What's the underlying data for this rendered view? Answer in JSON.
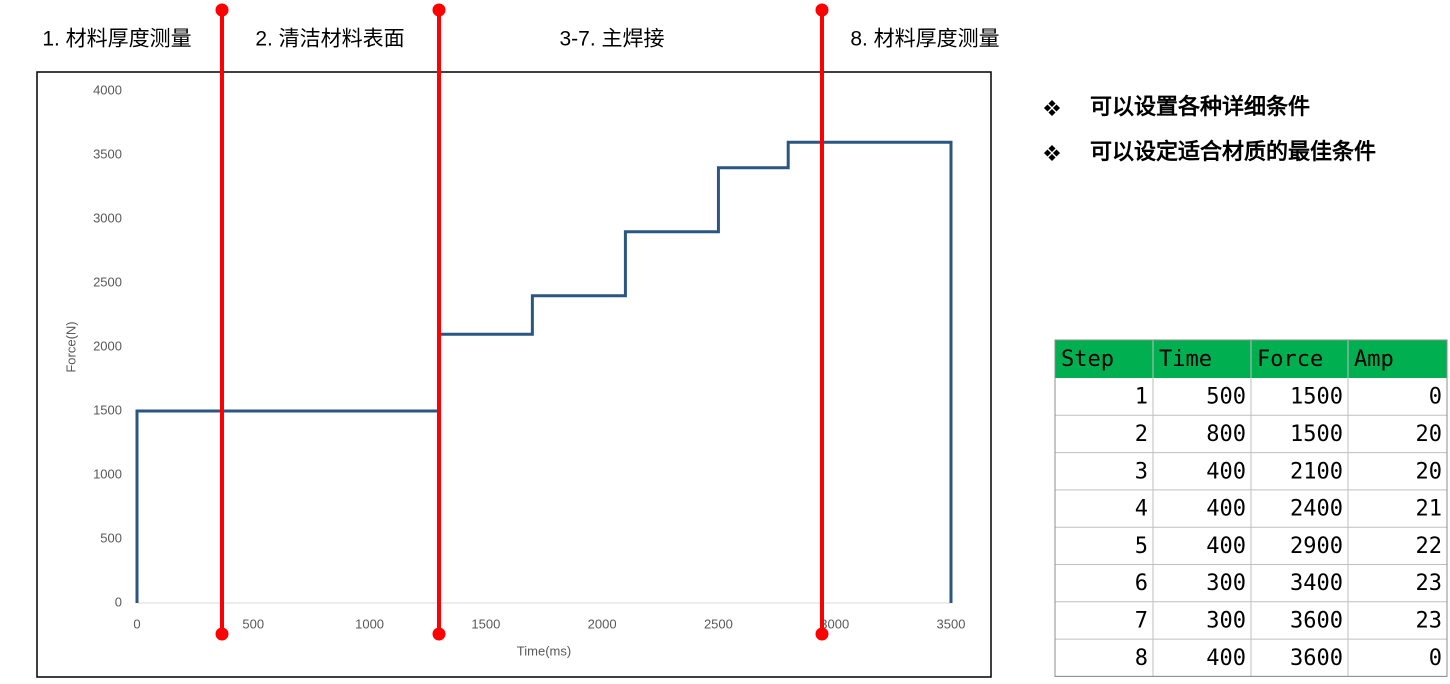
{
  "chart_data": {
    "type": "line",
    "annotations": [
      "1. 材料厚度测量",
      "2. 清洁材料表面",
      "3-7. 主焊接",
      "8. 材料厚度测量"
    ],
    "x_label": "Time(ms)",
    "y_label": "Force(N)",
    "x": [
      0,
      0,
      1300,
      1300,
      1700,
      1700,
      2100,
      2100,
      2500,
      2500,
      2800,
      2800,
      3500,
      3500
    ],
    "y": [
      0,
      1500,
      1500,
      2100,
      2100,
      2400,
      2400,
      2900,
      2900,
      3400,
      3400,
      3600,
      3600,
      0
    ],
    "color": "#2b5681",
    "xlim": [
      0,
      3500
    ],
    "xticks": [
      0,
      500,
      1000,
      1500,
      2000,
      2500,
      3000,
      3500
    ],
    "ylim": [
      0,
      4000
    ],
    "yticks": [
      0,
      500,
      1000,
      1500,
      2000,
      2500,
      3000,
      3500,
      4000
    ],
    "grid": false
  },
  "bullets": [
    "可以设置各种详细条件",
    "可以设定适合材质的最佳条件"
  ],
  "table": {
    "header": [
      "Step",
      "Time",
      "Force",
      "Amp"
    ],
    "rows": [
      [
        1,
        500,
        1500,
        0
      ],
      [
        2,
        800,
        1500,
        20
      ],
      [
        3,
        400,
        2100,
        20
      ],
      [
        4,
        400,
        2400,
        21
      ],
      [
        5,
        400,
        2900,
        22
      ],
      [
        6,
        300,
        3400,
        23
      ],
      [
        7,
        300,
        3600,
        23
      ],
      [
        8,
        400,
        3600,
        0
      ]
    ]
  }
}
